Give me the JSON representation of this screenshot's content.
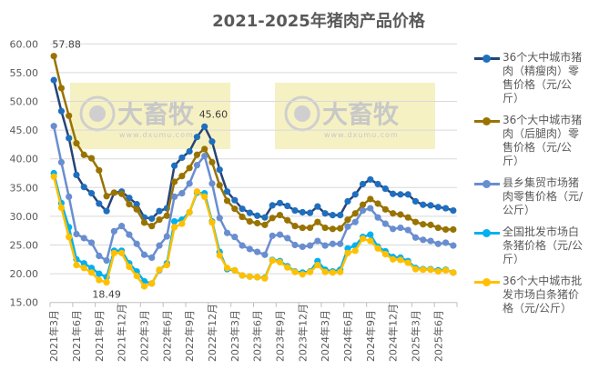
{
  "chart_data": {
    "type": "line",
    "title": "2021-2025年猪肉产品价格",
    "xlabel": "",
    "ylabel": "",
    "ylim": [
      15,
      60
    ],
    "y_ticks": [
      "15.00",
      "20.00",
      "25.00",
      "30.00",
      "35.00",
      "40.00",
      "45.00",
      "50.00",
      "55.00",
      "60.00"
    ],
    "grid": true,
    "legend_position": "right",
    "x": [
      "2021年3月",
      "2021年4月",
      "2021年5月",
      "2021年6月",
      "2021年7月",
      "2021年8月",
      "2021年9月",
      "2021年10月",
      "2021年11月",
      "2021年12月",
      "2022年1月",
      "2022年2月",
      "2022年3月",
      "2022年4月",
      "2022年5月",
      "2022年6月",
      "2022年7月",
      "2022年8月",
      "2022年9月",
      "2022年10月",
      "2022年11月",
      "2022年12月",
      "2023年1月",
      "2023年2月",
      "2023年3月",
      "2023年4月",
      "2023年5月",
      "2023年6月",
      "2023年7月",
      "2023年8月",
      "2023年9月",
      "2023年10月",
      "2023年11月",
      "2023年12月",
      "2024年1月",
      "2024年2月",
      "2024年3月",
      "2024年4月",
      "2024年5月",
      "2024年6月",
      "2024年7月",
      "2024年8月",
      "2024年9月",
      "2024年10月",
      "2024年11月",
      "2024年12月",
      "2025年1月",
      "2025年2月",
      "2025年3月",
      "2025年4月",
      "2025年5月",
      "2025年6月",
      "2025年7月",
      "2025年8月"
    ],
    "x_tick_labels": [
      "2021年3月",
      "2021年6月",
      "2021年9月",
      "2021年12月",
      "2022年3月",
      "2022年6月",
      "2022年9月",
      "2022年12月",
      "2023年3月",
      "2023年6月",
      "2023年9月",
      "2023年12月",
      "2024年3月",
      "2024年6月",
      "2024年9月",
      "2024年12月",
      "2025年3月",
      "2025年6月"
    ],
    "series": [
      {
        "name": "36个大中城市猪肉（精瘦肉）零售价格（元/公斤）",
        "color": "#264478",
        "marker_color": "#1F6FBF",
        "values": [
          53.7,
          48.3,
          43.6,
          37.2,
          35.1,
          34.0,
          32.2,
          30.9,
          34.1,
          34.3,
          33.2,
          32.1,
          29.8,
          29.6,
          30.9,
          31.4,
          38.8,
          40.2,
          41.3,
          43.8,
          45.6,
          43.0,
          38.1,
          34.3,
          32.8,
          31.3,
          30.6,
          30.1,
          29.8,
          31.9,
          32.3,
          31.8,
          31.0,
          30.7,
          30.6,
          31.7,
          30.5,
          30.2,
          30.2,
          32.6,
          33.8,
          35.6,
          36.4,
          35.6,
          34.8,
          33.9,
          33.8,
          33.8,
          32.6,
          32.0,
          31.9,
          31.6,
          31.4,
          31.0
        ]
      },
      {
        "name": "36个大中城市猪肉（后腿肉）零售价格（元/公斤）",
        "color": "#997300",
        "marker_color": "#997300",
        "values": [
          57.88,
          52.3,
          47.5,
          42.7,
          40.7,
          40.1,
          38.0,
          33.5,
          34.1,
          33.9,
          32.1,
          31.2,
          28.9,
          28.3,
          29.4,
          30.1,
          36.0,
          37.0,
          38.4,
          40.7,
          41.7,
          39.4,
          35.4,
          32.7,
          31.3,
          29.9,
          29.1,
          28.8,
          28.5,
          29.7,
          30.2,
          29.3,
          28.3,
          28.0,
          28.0,
          29.0,
          28.0,
          27.8,
          27.9,
          29.4,
          30.5,
          32.0,
          33.0,
          32.2,
          31.2,
          30.5,
          30.3,
          29.8,
          29.0,
          28.6,
          28.5,
          28.0,
          27.7,
          27.7
        ]
      },
      {
        "name": "县乡集贸市场猪肉零售价格（元/公斤）",
        "color": "#698ED0",
        "marker_color": "#698ED0",
        "values": [
          45.7,
          39.4,
          33.4,
          26.9,
          26.2,
          25.4,
          23.1,
          22.3,
          27.4,
          28.3,
          26.8,
          25.2,
          23.3,
          22.8,
          24.9,
          26.5,
          33.4,
          34.0,
          35.7,
          38.9,
          40.5,
          35.7,
          29.7,
          27.1,
          26.4,
          24.9,
          24.3,
          23.8,
          23.3,
          26.6,
          26.8,
          26.2,
          25.0,
          24.7,
          24.9,
          25.7,
          24.9,
          25.2,
          25.2,
          28.2,
          29.0,
          31.0,
          31.4,
          29.8,
          28.7,
          27.8,
          28.0,
          27.6,
          26.3,
          25.9,
          25.7,
          25.2,
          25.4,
          24.9
        ]
      },
      {
        "name": "全国批发市场白条猪价格（元/公斤）",
        "color": "#00B0F0",
        "marker_color": "#00B0F0",
        "values": [
          37.5,
          32.3,
          28.1,
          22.5,
          21.8,
          21.0,
          20.0,
          19.4,
          24.0,
          24.0,
          21.8,
          20.4,
          18.7,
          18.3,
          20.6,
          21.8,
          29.1,
          29.4,
          30.7,
          34.1,
          34.0,
          29.1,
          23.8,
          20.8,
          20.6,
          19.7,
          19.5,
          19.4,
          19.3,
          22.4,
          22.2,
          21.3,
          20.4,
          20.2,
          20.4,
          22.2,
          20.7,
          20.4,
          20.7,
          24.4,
          24.9,
          26.4,
          26.8,
          24.7,
          23.9,
          22.9,
          22.8,
          22.2,
          21.0,
          20.8,
          20.8,
          20.6,
          20.7,
          20.2
        ]
      },
      {
        "name": "36个大中城市批发市场白条猪价格（元/公斤）",
        "color": "#FFC000",
        "marker_color": "#FFC000",
        "values": [
          36.9,
          31.5,
          26.4,
          21.5,
          21.0,
          20.2,
          18.9,
          18.49,
          23.6,
          23.6,
          21.2,
          19.6,
          17.8,
          18.3,
          20.7,
          21.5,
          28.1,
          28.7,
          30.7,
          34.3,
          33.4,
          28.9,
          23.2,
          21.0,
          20.6,
          19.7,
          19.5,
          19.4,
          19.2,
          22.3,
          22.0,
          21.1,
          20.3,
          19.9,
          20.3,
          21.5,
          20.3,
          20.2,
          20.3,
          23.6,
          24.0,
          26.1,
          25.7,
          24.4,
          23.4,
          22.5,
          22.4,
          21.9,
          20.8,
          20.7,
          20.7,
          20.4,
          20.6,
          20.2
        ]
      }
    ],
    "annotations": [
      {
        "text": "57.88",
        "series": 1,
        "x": "2021年3月"
      },
      {
        "text": "45.60",
        "series": 0,
        "x": "2022年11月"
      },
      {
        "text": "18.49",
        "series": 4,
        "x": "2021年10月"
      }
    ]
  },
  "watermark": {
    "brand": "大畜牧",
    "url": "www.dxumu.com"
  }
}
